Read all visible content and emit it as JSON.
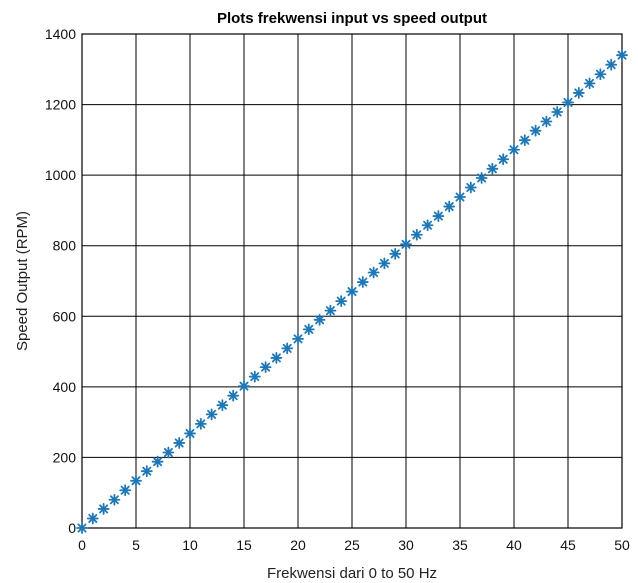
{
  "chart_data": {
    "type": "scatter",
    "title": "Plots frekwensi input vs speed output",
    "xlabel": "Frekwensi dari 0 to 50 Hz",
    "ylabel": "Speed Output (RPM)",
    "xlim": [
      0,
      50
    ],
    "ylim": [
      0,
      1400
    ],
    "xticks": [
      0,
      5,
      10,
      15,
      20,
      25,
      30,
      35,
      40,
      45,
      50
    ],
    "yticks": [
      0,
      200,
      400,
      600,
      800,
      1000,
      1200,
      1400
    ],
    "grid": true,
    "marker": "asterisk",
    "series": [
      {
        "color": "#1f77b4",
        "x": [
          0,
          1,
          2,
          3,
          4,
          5,
          6,
          7,
          8,
          9,
          10,
          11,
          12,
          13,
          14,
          15,
          16,
          17,
          18,
          19,
          20,
          21,
          22,
          23,
          24,
          25,
          26,
          27,
          28,
          29,
          30,
          31,
          32,
          33,
          34,
          35,
          36,
          37,
          38,
          39,
          40,
          41,
          42,
          43,
          44,
          45,
          46,
          47,
          48,
          49,
          50
        ],
        "y": [
          0,
          27,
          54,
          80,
          107,
          134,
          161,
          188,
          214,
          241,
          268,
          295,
          322,
          348,
          375,
          402,
          429,
          456,
          482,
          509,
          536,
          563,
          590,
          616,
          643,
          670,
          697,
          724,
          750,
          777,
          804,
          831,
          858,
          884,
          911,
          938,
          965,
          992,
          1018,
          1045,
          1072,
          1099,
          1126,
          1152,
          1179,
          1206,
          1233,
          1260,
          1286,
          1313,
          1340
        ]
      }
    ]
  }
}
